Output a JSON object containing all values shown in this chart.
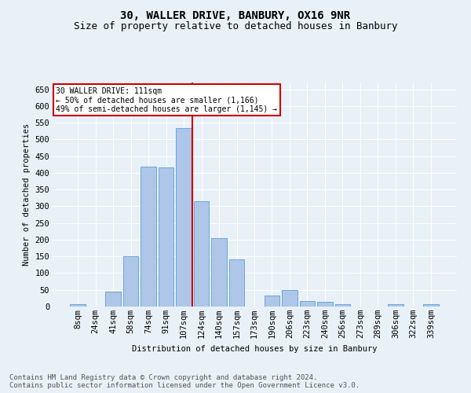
{
  "title": "30, WALLER DRIVE, BANBURY, OX16 9NR",
  "subtitle": "Size of property relative to detached houses in Banbury",
  "xlabel": "Distribution of detached houses by size in Banbury",
  "ylabel": "Number of detached properties",
  "footer_line1": "Contains HM Land Registry data © Crown copyright and database right 2024.",
  "footer_line2": "Contains public sector information licensed under the Open Government Licence v3.0.",
  "annotation_line1": "30 WALLER DRIVE: 111sqm",
  "annotation_line2": "← 50% of detached houses are smaller (1,166)",
  "annotation_line3": "49% of semi-detached houses are larger (1,145) →",
  "bar_labels": [
    "8sqm",
    "24sqm",
    "41sqm",
    "58sqm",
    "74sqm",
    "91sqm",
    "107sqm",
    "124sqm",
    "140sqm",
    "157sqm",
    "173sqm",
    "190sqm",
    "206sqm",
    "223sqm",
    "240sqm",
    "256sqm",
    "273sqm",
    "289sqm",
    "306sqm",
    "322sqm",
    "339sqm"
  ],
  "bar_values": [
    8,
    0,
    44,
    150,
    418,
    417,
    533,
    314,
    204,
    140,
    0,
    34,
    49,
    16,
    15,
    8,
    0,
    0,
    7,
    0,
    8
  ],
  "bar_color": "#aec6e8",
  "bar_edge_color": "#5a9fd4",
  "vline_index": 6,
  "vline_color": "#cc0000",
  "ylim": [
    0,
    670
  ],
  "yticks": [
    0,
    50,
    100,
    150,
    200,
    250,
    300,
    350,
    400,
    450,
    500,
    550,
    600,
    650
  ],
  "annotation_box_color": "#ffffff",
  "annotation_box_edge": "#cc0000",
  "bg_color": "#e8f0f8",
  "plot_bg_color": "#e8f0f8",
  "title_fontsize": 10,
  "subtitle_fontsize": 9,
  "axis_fontsize": 7.5,
  "tick_fontsize": 7.5,
  "footer_fontsize": 6.5
}
